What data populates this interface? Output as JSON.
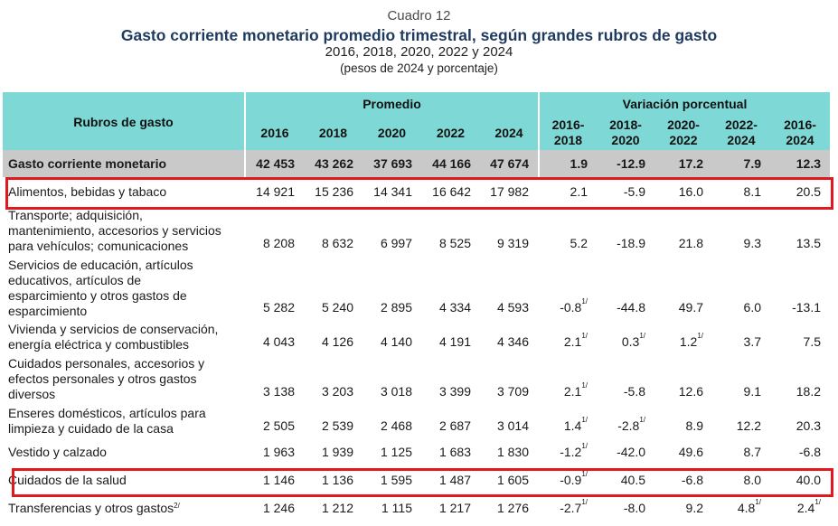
{
  "header": {
    "cuadro": "Cuadro 12",
    "title": "Gasto corriente monetario promedio trimestral, según grandes rubros de gasto",
    "years": "2016, 2018, 2020, 2022 y 2024",
    "units": "(pesos de 2024 y porcentaje)"
  },
  "table": {
    "col_rubros": "Rubros de gasto",
    "group_promedio": "Promedio",
    "group_variacion": "Variación porcentual",
    "year_cols": [
      "2016",
      "2018",
      "2020",
      "2022",
      "2024"
    ],
    "var_cols": [
      {
        "top": "2016-",
        "bottom": "2018"
      },
      {
        "top": "2018-",
        "bottom": "2020"
      },
      {
        "top": "2020-",
        "bottom": "2022"
      },
      {
        "top": "2022-",
        "bottom": "2024"
      },
      {
        "top": "2016-",
        "bottom": "2024"
      }
    ],
    "total": {
      "label": "Gasto corriente monetario",
      "values": [
        "42 453",
        "43 262",
        "37 693",
        "44 166",
        "47 674"
      ],
      "var": [
        {
          "v": "1.9"
        },
        {
          "v": "-12.9"
        },
        {
          "v": "17.2"
        },
        {
          "v": "7.9"
        },
        {
          "v": "12.3"
        }
      ]
    },
    "rows": [
      {
        "lines": [
          "Alimentos, bebidas y tabaco"
        ],
        "sup": "",
        "values": [
          "14 921",
          "15 236",
          "14 341",
          "16 642",
          "17 982"
        ],
        "var": [
          {
            "v": "2.1"
          },
          {
            "v": "-5.9"
          },
          {
            "v": "16.0"
          },
          {
            "v": "8.1"
          },
          {
            "v": "20.5"
          }
        ]
      },
      {
        "lines": [
          "Transporte; adquisición,",
          "mantenimiento, accesorios y servicios",
          "para vehículos; comunicaciones"
        ],
        "sup": "",
        "values": [
          "8 208",
          "8 632",
          "6 997",
          "8 525",
          "9 319"
        ],
        "var": [
          {
            "v": "5.2"
          },
          {
            "v": "-18.9"
          },
          {
            "v": "21.8"
          },
          {
            "v": "9.3"
          },
          {
            "v": "13.5"
          }
        ]
      },
      {
        "lines": [
          "Servicios de educación, artículos",
          "educativos, artículos de",
          "esparcimiento y otros gastos de",
          "esparcimiento"
        ],
        "sup": "",
        "values": [
          "5 282",
          "5 240",
          "2 895",
          "4 334",
          "4 593"
        ],
        "var": [
          {
            "v": "-0.8",
            "s": "1/"
          },
          {
            "v": "-44.8"
          },
          {
            "v": "49.7"
          },
          {
            "v": "6.0"
          },
          {
            "v": "-13.1"
          }
        ]
      },
      {
        "lines": [
          "Vivienda y servicios de conservación,",
          "energía eléctrica y combustibles"
        ],
        "sup": "",
        "values": [
          "4 043",
          "4 126",
          "4 140",
          "4 191",
          "4 346"
        ],
        "var": [
          {
            "v": "2.1",
            "s": "1/"
          },
          {
            "v": "0.3",
            "s": "1/"
          },
          {
            "v": "1.2",
            "s": "1/"
          },
          {
            "v": "3.7"
          },
          {
            "v": "7.5"
          }
        ]
      },
      {
        "lines": [
          "Cuidados personales, accesorios y",
          "efectos personales y otros gastos",
          "diversos"
        ],
        "sup": "",
        "values": [
          "3 138",
          "3 203",
          "3 018",
          "3 399",
          "3 709"
        ],
        "var": [
          {
            "v": "2.1",
            "s": "1/"
          },
          {
            "v": "-5.8"
          },
          {
            "v": "12.6"
          },
          {
            "v": "9.1"
          },
          {
            "v": "18.2"
          }
        ]
      },
      {
        "lines": [
          "Enseres domésticos, artículos para",
          "limpieza y cuidado de la casa"
        ],
        "sup": "",
        "values": [
          "2 505",
          "2 539",
          "2 468",
          "2 687",
          "3 014"
        ],
        "var": [
          {
            "v": "1.4",
            "s": "1/"
          },
          {
            "v": "-2.8",
            "s": "1/"
          },
          {
            "v": "8.9"
          },
          {
            "v": "12.2"
          },
          {
            "v": "20.3"
          }
        ]
      },
      {
        "lines": [
          "Vestido y calzado"
        ],
        "sup": "",
        "values": [
          "1 963",
          "1 939",
          "1 125",
          "1 683",
          "1 830"
        ],
        "var": [
          {
            "v": "-1.2",
            "s": "1/"
          },
          {
            "v": "-42.0"
          },
          {
            "v": "49.6"
          },
          {
            "v": "8.7"
          },
          {
            "v": "-6.8"
          }
        ]
      },
      {
        "lines": [
          "Cuidados de la salud"
        ],
        "sup": "",
        "values": [
          "1 146",
          "1 136",
          "1 595",
          "1 487",
          "1 605"
        ],
        "var": [
          {
            "v": "-0.9",
            "s": "1/"
          },
          {
            "v": "40.5"
          },
          {
            "v": "-6.8"
          },
          {
            "v": "8.0"
          },
          {
            "v": "40.0"
          }
        ]
      },
      {
        "lines": [
          "Transferencias y otros gastos"
        ],
        "sup": "2/",
        "values": [
          "1 246",
          "1 212",
          "1 115",
          "1 217",
          "1 276"
        ],
        "var": [
          {
            "v": "-2.7",
            "s": "1/"
          },
          {
            "v": "-8.0"
          },
          {
            "v": "9.2"
          },
          {
            "v": "4.8",
            "s": "1/"
          },
          {
            "v": "2.4",
            "s": "1/"
          }
        ]
      }
    ]
  },
  "colors": {
    "header_teal": "#7ed9d6",
    "total_gray": "#c9c9c9",
    "highlight_red": "#e0191e",
    "title_navy": "#1f3a5f"
  }
}
